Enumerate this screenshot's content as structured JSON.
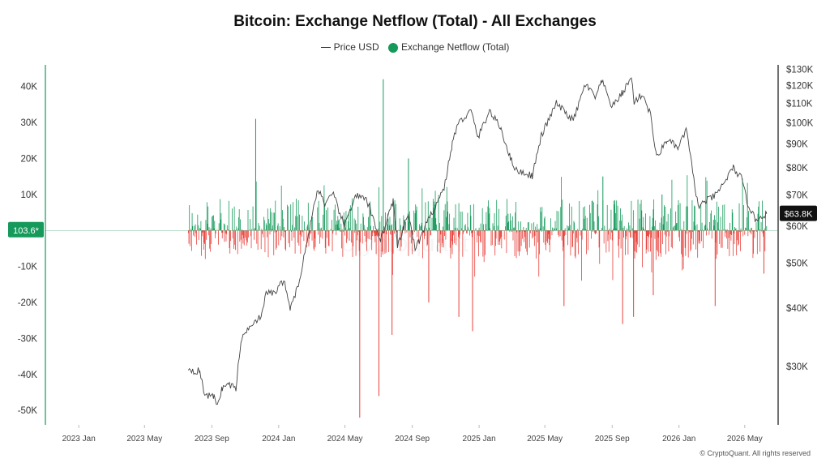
{
  "chart_data": {
    "type": "bar+line",
    "title": "Bitcoin: Exchange Netflow (Total) - All Exchanges",
    "legend": {
      "placement": "top-center",
      "entries": [
        "Price USD",
        "Exchange Netflow (Total)"
      ]
    },
    "colors": {
      "inflow": "#159a5b",
      "outflow": "#e8413b",
      "price": "#444444",
      "left_axis": "#159a5b",
      "right_axis": "#111111"
    },
    "x_axis": {
      "range": [
        "2022-11-01",
        "2026-07-01"
      ],
      "ticks": [
        {
          "date": "2023-01-01",
          "label": "2023 Jan"
        },
        {
          "date": "2023-05-01",
          "label": "2023 May"
        },
        {
          "date": "2023-09-01",
          "label": "2023 Sep"
        },
        {
          "date": "2024-01-01",
          "label": "2024 Jan"
        },
        {
          "date": "2024-05-01",
          "label": "2024 May"
        },
        {
          "date": "2024-09-01",
          "label": "2024 Sep"
        },
        {
          "date": "2025-01-01",
          "label": "2025 Jan"
        },
        {
          "date": "2025-05-01",
          "label": "2025 May"
        },
        {
          "date": "2025-09-01",
          "label": "2025 Sep"
        },
        {
          "date": "2026-01-01",
          "label": "2026 Jan"
        },
        {
          "date": "2026-05-01",
          "label": "2026 May"
        }
      ]
    },
    "left_axis": {
      "name": "Exchange Netflow (Total)",
      "range": [
        -54000,
        46000
      ],
      "ticks": [
        {
          "value": 40000,
          "label": "40K"
        },
        {
          "value": 30000,
          "label": "30K"
        },
        {
          "value": 20000,
          "label": "20K"
        },
        {
          "value": 10000,
          "label": "10K"
        },
        {
          "value": -10000,
          "label": "-10K"
        },
        {
          "value": -20000,
          "label": "-20K"
        },
        {
          "value": -30000,
          "label": "-30K"
        },
        {
          "value": -40000,
          "label": "-40K"
        },
        {
          "value": -50000,
          "label": "-50K"
        }
      ],
      "current_value": 103.6,
      "current_label": "103.6*"
    },
    "right_axis": {
      "name": "Price USD",
      "scale": "log",
      "range": [
        22500,
        133000
      ],
      "ticks": [
        {
          "value": 130000,
          "label": "$130K"
        },
        {
          "value": 120000,
          "label": "$120K"
        },
        {
          "value": 110000,
          "label": "$110K"
        },
        {
          "value": 100000,
          "label": "$100K"
        },
        {
          "value": 90000,
          "label": "$90K"
        },
        {
          "value": 80000,
          "label": "$80K"
        },
        {
          "value": 70000,
          "label": "$70K"
        },
        {
          "value": 60000,
          "label": "$60K"
        },
        {
          "value": 50000,
          "label": "$50K"
        },
        {
          "value": 40000,
          "label": "$40K"
        },
        {
          "value": 30000,
          "label": "$30K"
        }
      ],
      "current_value": 63800,
      "current_label": "$63.8K"
    },
    "price_series": {
      "name": "Price USD",
      "points": [
        [
          "2023-07-20",
          29800
        ],
        [
          "2023-08-01",
          29300
        ],
        [
          "2023-08-10",
          29400
        ],
        [
          "2023-08-17",
          26500
        ],
        [
          "2023-08-25",
          26000
        ],
        [
          "2023-09-05",
          25800
        ],
        [
          "2023-09-11",
          25000
        ],
        [
          "2023-09-20",
          27000
        ],
        [
          "2023-10-01",
          27500
        ],
        [
          "2023-10-15",
          27000
        ],
        [
          "2023-10-24",
          34000
        ],
        [
          "2023-11-10",
          37000
        ],
        [
          "2023-12-01",
          38500
        ],
        [
          "2023-12-10",
          43500
        ],
        [
          "2023-12-25",
          43000
        ],
        [
          "2024-01-10",
          46000
        ],
        [
          "2024-01-23",
          39800
        ],
        [
          "2024-02-10",
          47000
        ],
        [
          "2024-02-28",
          61000
        ],
        [
          "2024-03-13",
          72500
        ],
        [
          "2024-03-25",
          67000
        ],
        [
          "2024-04-10",
          70000
        ],
        [
          "2024-04-30",
          60000
        ],
        [
          "2024-05-20",
          70000
        ],
        [
          "2024-06-10",
          68000
        ],
        [
          "2024-07-05",
          56000
        ],
        [
          "2024-07-28",
          68000
        ],
        [
          "2024-08-05",
          54000
        ],
        [
          "2024-08-25",
          64000
        ],
        [
          "2024-09-06",
          53500
        ],
        [
          "2024-10-01",
          62000
        ],
        [
          "2024-10-29",
          72500
        ],
        [
          "2024-11-13",
          90000
        ],
        [
          "2024-11-22",
          99000
        ],
        [
          "2024-12-17",
          106000
        ],
        [
          "2024-12-30",
          93000
        ],
        [
          "2025-01-20",
          106000
        ],
        [
          "2025-02-10",
          97000
        ],
        [
          "2025-02-27",
          84000
        ],
        [
          "2025-03-10",
          79000
        ],
        [
          "2025-04-08",
          77000
        ],
        [
          "2025-04-25",
          94000
        ],
        [
          "2025-05-22",
          110000
        ],
        [
          "2025-06-22",
          101000
        ],
        [
          "2025-07-14",
          121000
        ],
        [
          "2025-08-02",
          113000
        ],
        [
          "2025-08-13",
          123000
        ],
        [
          "2025-09-01",
          108000
        ],
        [
          "2025-09-20",
          116000
        ],
        [
          "2025-10-06",
          125000
        ],
        [
          "2025-10-11",
          111000
        ],
        [
          "2025-10-27",
          115000
        ],
        [
          "2025-11-10",
          104000
        ],
        [
          "2025-11-21",
          84000
        ],
        [
          "2025-12-10",
          92000
        ],
        [
          "2025-12-31",
          88000
        ],
        [
          "2026-01-14",
          97000
        ],
        [
          "2026-02-05",
          66000
        ],
        [
          "2026-02-20",
          68000
        ],
        [
          "2026-03-10",
          70000
        ],
        [
          "2026-04-10",
          80000
        ],
        [
          "2026-04-25",
          76000
        ],
        [
          "2026-05-05",
          68000
        ],
        [
          "2026-05-20",
          62000
        ],
        [
          "2026-06-01",
          63000
        ],
        [
          "2026-06-10",
          63800
        ]
      ]
    },
    "netflow_series": {
      "name": "Exchange Netflow (Total)",
      "start": "2023-07-20",
      "end": "2026-06-10",
      "notable_spikes": [
        [
          "2023-11-20",
          31000
        ],
        [
          "2024-07-10",
          42000
        ],
        [
          "2024-08-25",
          20000
        ],
        [
          "2025-08-15",
          15000
        ],
        [
          "2025-12-01",
          10000
        ],
        [
          "2024-05-28",
          -52000
        ],
        [
          "2024-07-02",
          -46000
        ],
        [
          "2024-07-26",
          -29000
        ],
        [
          "2024-10-01",
          -20000
        ],
        [
          "2024-11-25",
          -24000
        ],
        [
          "2024-12-20",
          -28000
        ],
        [
          "2025-06-05",
          -21000
        ],
        [
          "2025-09-20",
          -26000
        ],
        [
          "2025-10-10",
          -24000
        ],
        [
          "2025-11-15",
          -18000
        ],
        [
          "2026-03-08",
          -21000
        ],
        [
          "2026-06-05",
          -12000
        ]
      ]
    }
  },
  "copyright": "© CryptoQuant. All rights reserved"
}
